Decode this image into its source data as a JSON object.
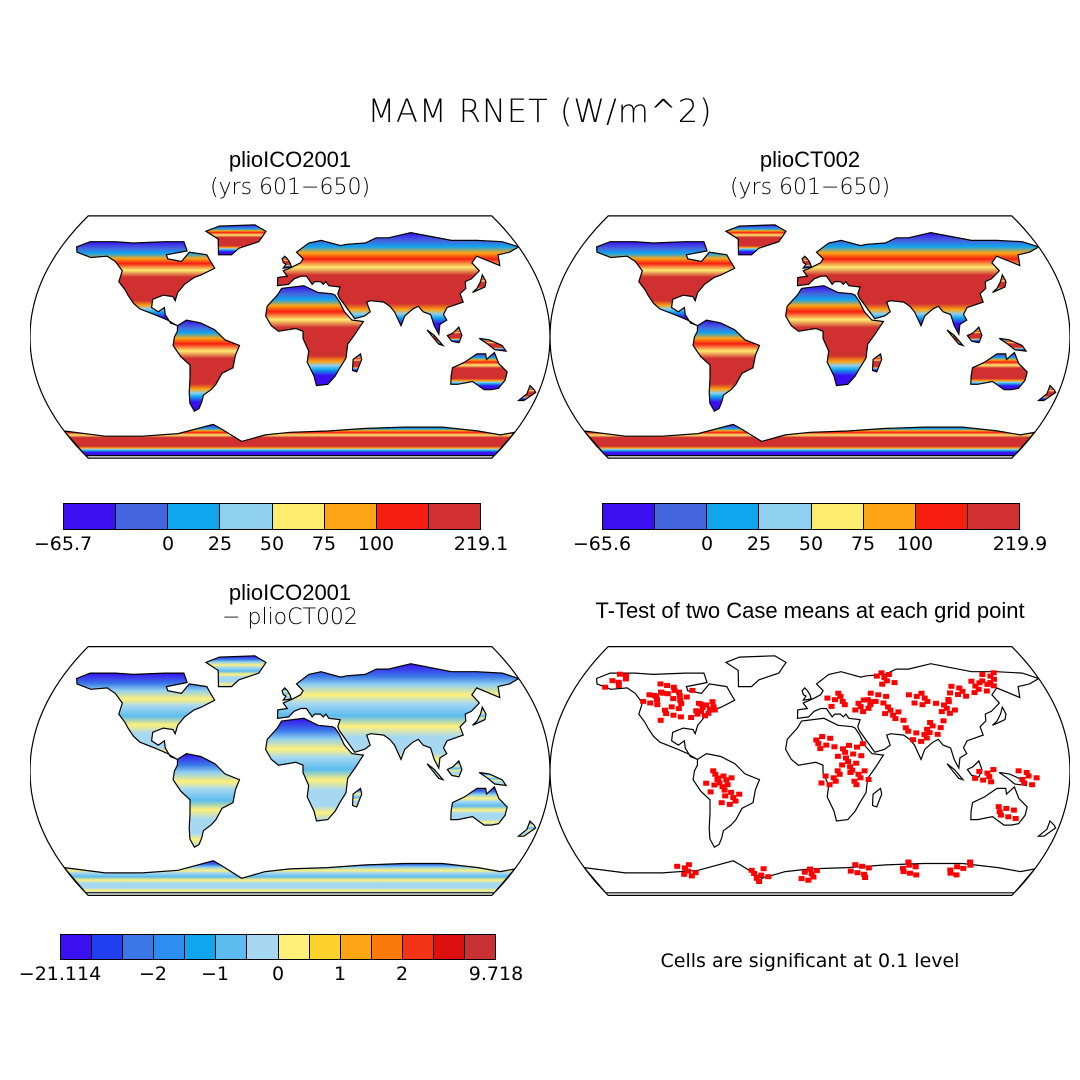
{
  "main_title": "MAM RNET (W/m^2)",
  "note": "Cells are significant at 0.1 level",
  "chart_data": [
    {
      "type": "heatmap",
      "title": "plioICO2001",
      "subtitle": "(yrs 601−650)",
      "projection": "Robinson world map",
      "colorbar": {
        "colors": [
          "#3a10f0",
          "#4466dd",
          "#10a6ee",
          "#8fcff0",
          "#fcec70",
          "#fda514",
          "#f61e10",
          "#d03030"
        ],
        "tick_labels": [
          "−65.7",
          "0",
          "25",
          "50",
          "75",
          "100",
          "219.1"
        ],
        "boundaries": [
          -65.7,
          null,
          0,
          25,
          50,
          75,
          100,
          null,
          219.1
        ]
      }
    },
    {
      "type": "heatmap",
      "title": "plioCT002",
      "subtitle": "(yrs 601−650)",
      "projection": "Robinson world map",
      "colorbar": {
        "colors": [
          "#3a10f0",
          "#4466dd",
          "#10a6ee",
          "#8fcff0",
          "#fcec70",
          "#fda514",
          "#f61e10",
          "#d03030"
        ],
        "tick_labels": [
          "−65.6",
          "0",
          "25",
          "50",
          "75",
          "100",
          "219.9"
        ],
        "boundaries": [
          -65.6,
          null,
          0,
          25,
          50,
          75,
          100,
          null,
          219.9
        ]
      }
    },
    {
      "type": "heatmap",
      "title": "plioICO2001",
      "subtitle": "− plioCT002",
      "projection": "Robinson world map",
      "colorbar": {
        "colors": [
          "#3a10f0",
          "#2040f0",
          "#3a78e8",
          "#2c8ef0",
          "#10a6ee",
          "#5cbcef",
          "#a7d8f2",
          "#fff07a",
          "#fcd22c",
          "#fca616",
          "#fc7a0c",
          "#f43414",
          "#dd0f0f",
          "#c83232"
        ],
        "tick_labels": [
          "−21.114",
          "−2",
          "−1",
          "0",
          "1",
          "2",
          "9.718"
        ],
        "boundaries": [
          -21.114,
          -2,
          -1,
          0,
          1,
          2,
          9.718
        ]
      }
    },
    {
      "type": "heatmap",
      "title": "T-Test of two Case means at each grid point",
      "projection": "Robinson world map",
      "significance_color": "#ff0000",
      "significance_level": 0.1
    }
  ]
}
